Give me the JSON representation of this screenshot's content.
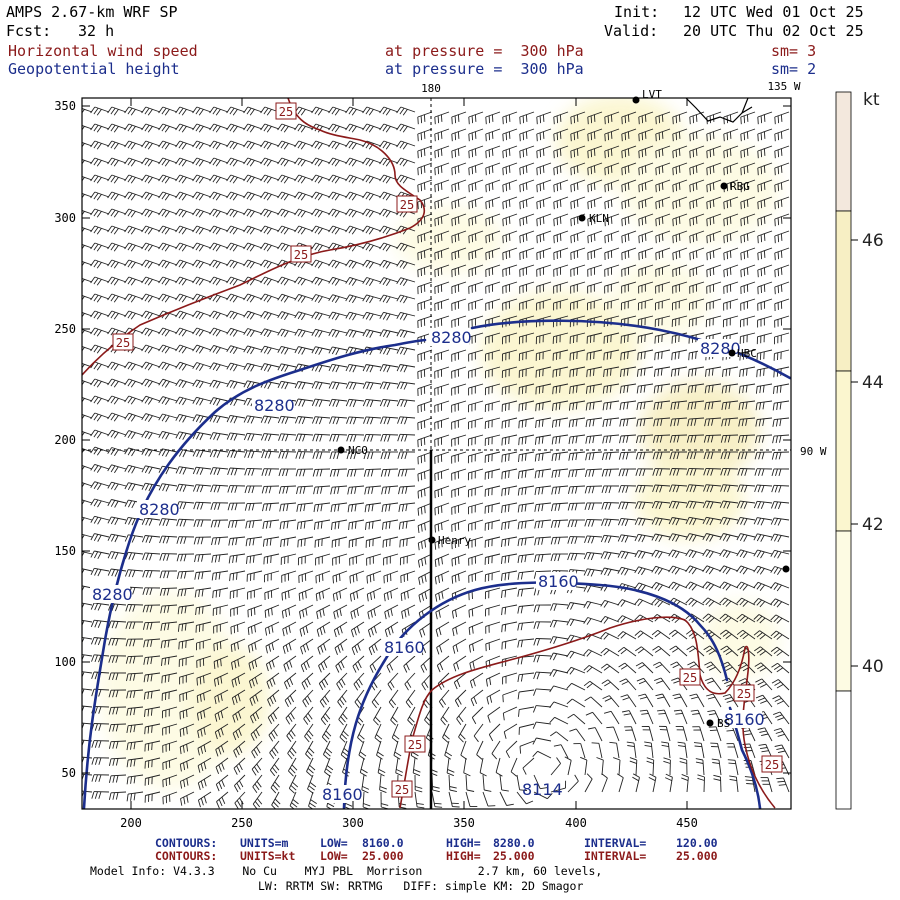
{
  "header": {
    "model_title": "AMPS 2.67-km WRF SP",
    "fcst_label": "Fcst:",
    "fcst_value": "32 h",
    "init_label": "Init:",
    "init_value": "12 UTC Wed 01 Oct 25",
    "valid_label": "Valid:",
    "valid_value": "20 UTC Thu 02 Oct 25",
    "field1": {
      "name": "Horizontal wind speed",
      "level": "at pressure =  300 hPa",
      "smooth": "sm= 3"
    },
    "field2": {
      "name": "Geopotential height",
      "level": "at pressure =  300 hPa",
      "smooth": "sm= 2"
    }
  },
  "colors": {
    "wind_contour": "#8b1a1a",
    "height_contour": "#1c2e8c",
    "shade_40_42": "#fdfbe3",
    "shade_42_44": "#fbf6cf",
    "shade_44_46": "#f7efc4",
    "shade_46_plus": "#f3e8dd"
  },
  "map": {
    "x_ticks": [
      "200",
      "250",
      "300",
      "350",
      "400",
      "450"
    ],
    "y_ticks": [
      "350",
      "300",
      "250",
      "200",
      "150",
      "100",
      "50"
    ],
    "meridian_labels": [
      "180",
      "135 W",
      "90 W"
    ],
    "stations": [
      "LVT",
      "RBG",
      "KLN",
      "HBC",
      "NCO",
      "Henry",
      "BS"
    ],
    "height_contour_labels": [
      "8280",
      "8280",
      "8280",
      "8280",
      "8160",
      "8160",
      "8160",
      "8160",
      "8114"
    ],
    "wind_contour_labels": [
      "25",
      "25",
      "25",
      "25",
      "25",
      "25",
      "25",
      "25"
    ]
  },
  "colorbar": {
    "unit": "kt",
    "labels": [
      "46",
      "44",
      "42",
      "40"
    ]
  },
  "footer": {
    "line1": {
      "c1": "CONTOURS:",
      "c2": "UNITS=m",
      "c3": "LOW=",
      "c4": "8160.0",
      "c5": "HIGH=",
      "c6": "8280.0",
      "c7": "INTERVAL=",
      "c8": "120.00"
    },
    "line2": {
      "c1": "CONTOURS:",
      "c2": "UNITS=kt",
      "c3": "LOW=",
      "c4": "25.000",
      "c5": "HIGH=",
      "c6": "25.000",
      "c7": "INTERVAL=",
      "c8": "25.000"
    },
    "line3": "Model Info: V4.3.3    No Cu    MYJ PBL  Morrison        2.7 km, 60 levels,",
    "line4": "LW: RRTM SW: RRTMG   DIFF: simple KM: 2D Smagor"
  }
}
